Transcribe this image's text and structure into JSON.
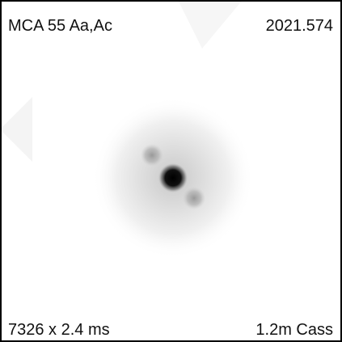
{
  "labels": {
    "top_left": "MCA 55 Aa,Ac",
    "top_right": "2021.574",
    "bottom_left": "7326 x 2.4 ms",
    "bottom_right": "1.2m Cass"
  }
}
